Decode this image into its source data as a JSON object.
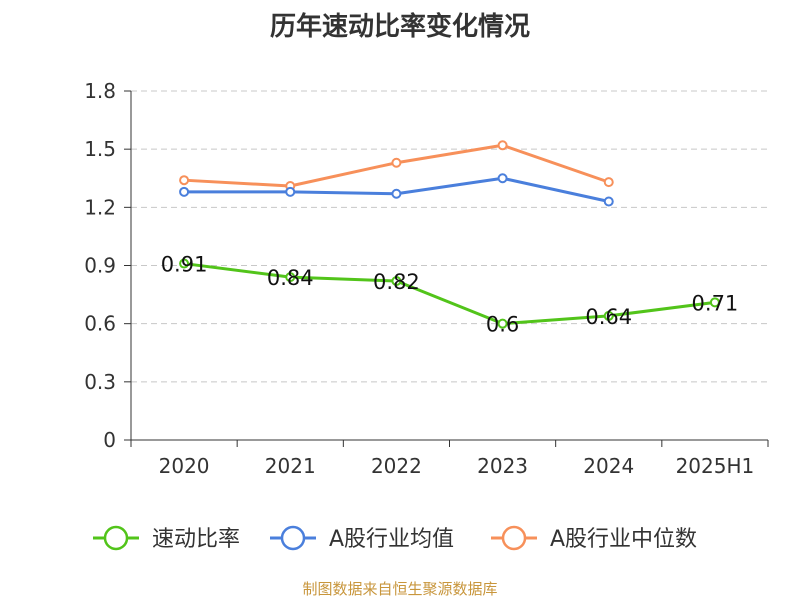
{
  "chart_data": {
    "type": "line",
    "title": "历年速动比率变化情况",
    "categories": [
      "2020",
      "2021",
      "2022",
      "2023",
      "2024",
      "2025H1"
    ],
    "yticks": [
      "0",
      "0.3",
      "0.6",
      "0.9",
      "1.2",
      "1.5",
      "1.8"
    ],
    "ylim": [
      0,
      1.8
    ],
    "grid": true,
    "legend_position": "bottom",
    "series": [
      {
        "name": "速动比率",
        "color": "#52c41a",
        "values": [
          0.91,
          0.84,
          0.82,
          0.6,
          0.64,
          0.71
        ],
        "labels": [
          "0.91",
          "0.84",
          "0.82",
          "0.6",
          "0.64",
          "0.71"
        ]
      },
      {
        "name": "A股行业均值",
        "color": "#4a7fdc",
        "values": [
          1.28,
          1.28,
          1.27,
          1.35,
          1.23,
          null
        ]
      },
      {
        "name": "A股行业中位数",
        "color": "#f7905a",
        "values": [
          1.34,
          1.31,
          1.43,
          1.52,
          1.33,
          null
        ]
      }
    ]
  },
  "source": "制图数据来自恒生聚源数据库"
}
